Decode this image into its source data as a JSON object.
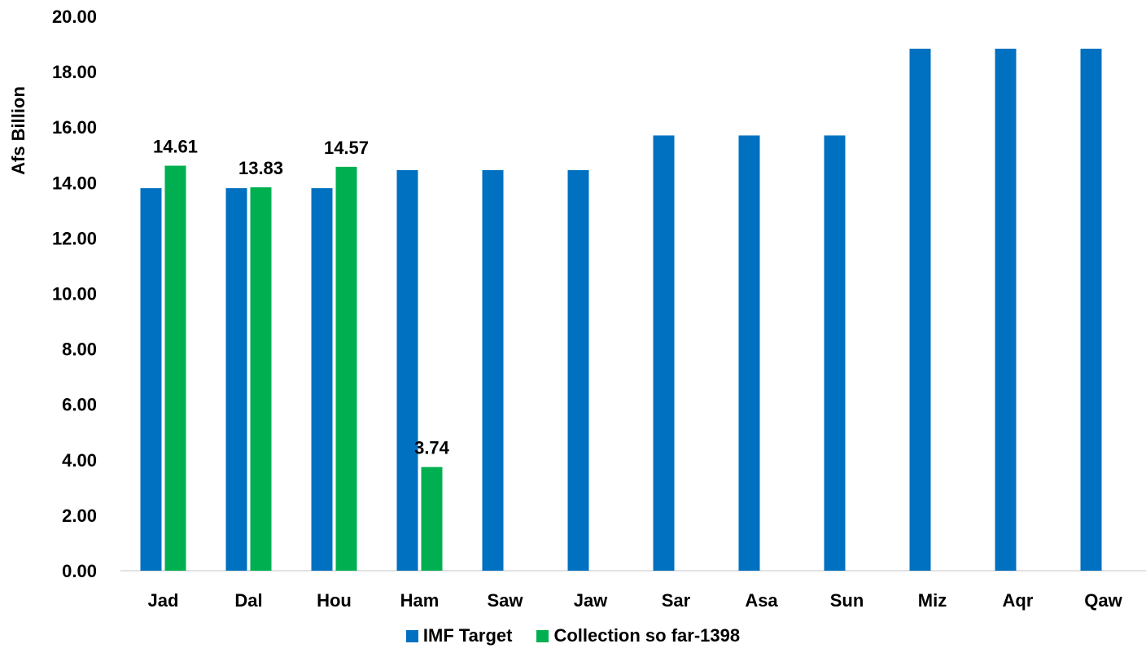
{
  "chart_data": {
    "type": "bar",
    "ylabel": "Afs Billion",
    "ylim": [
      0,
      20
    ],
    "yticks": [
      "0.00",
      "2.00",
      "4.00",
      "6.00",
      "8.00",
      "10.00",
      "12.00",
      "14.00",
      "16.00",
      "18.00",
      "20.00"
    ],
    "categories": [
      "Jad",
      "Dal",
      "Hou",
      "Ham",
      "Saw",
      "Jaw",
      "Sar",
      "Asa",
      "Sun",
      "Miz",
      "Aqr",
      "Qaw"
    ],
    "series": [
      {
        "name": "IMF Target",
        "color": "#0070C0",
        "values": [
          13.8,
          13.8,
          13.8,
          14.45,
          14.45,
          14.45,
          15.7,
          15.7,
          15.7,
          18.83,
          18.83,
          18.83
        ],
        "labels_shown": false
      },
      {
        "name": "Collection so far-1398",
        "color": "#00B050",
        "values": [
          14.61,
          13.83,
          14.57,
          3.74,
          null,
          null,
          null,
          null,
          null,
          null,
          null,
          null
        ],
        "labels_shown": true,
        "data_labels": [
          "14.61",
          "13.83",
          "14.57",
          "3.74",
          null,
          null,
          null,
          null,
          null,
          null,
          null,
          null
        ]
      }
    ],
    "grid": false,
    "legend_position": "bottom"
  }
}
